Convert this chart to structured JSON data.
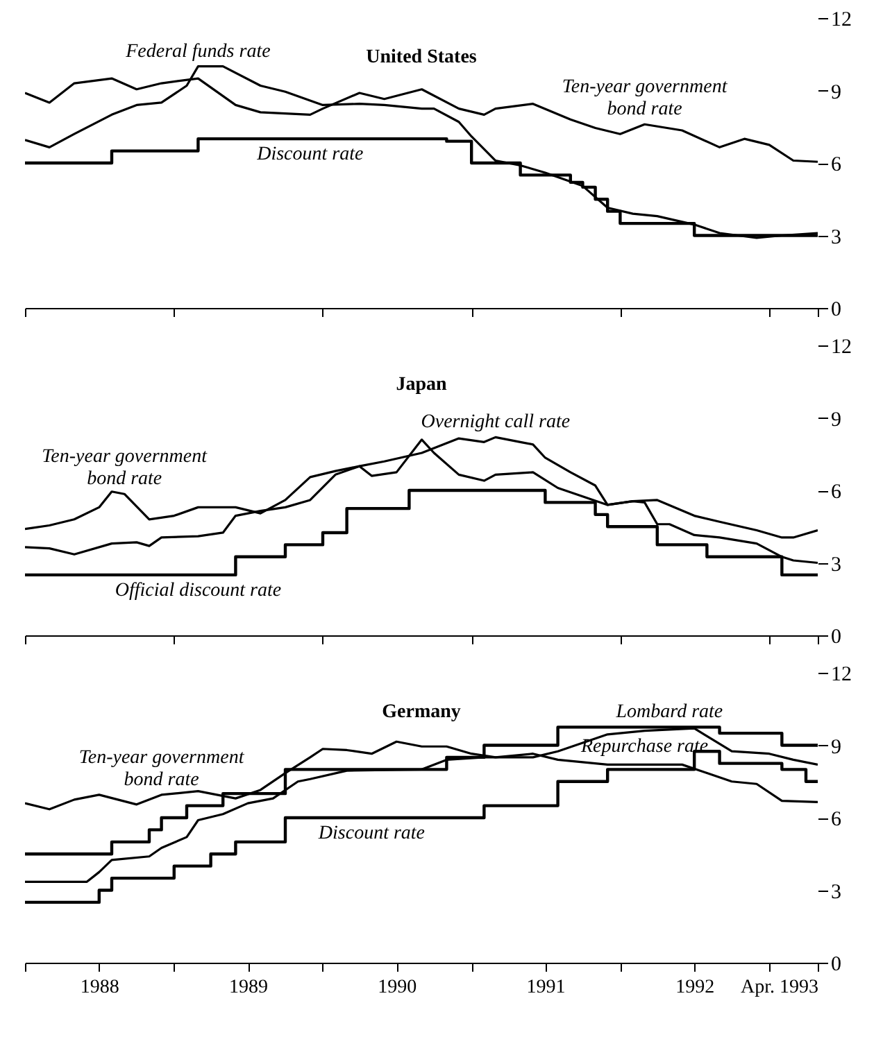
{
  "chart_data": [
    {
      "type": "line",
      "title": "United States",
      "xlim": [
        "1988-01",
        "1993-04-30"
      ],
      "ylim": [
        0,
        12
      ],
      "yticks": [
        0,
        3,
        6,
        9,
        12
      ],
      "tick_labels": "y",
      "xticks": [
        {
          "value": "1988-01",
          "label": null
        },
        {
          "value": "1989-01",
          "label": null
        },
        {
          "value": "1990-01",
          "label": null
        },
        {
          "value": "1991-01",
          "label": null
        },
        {
          "value": "1992-01",
          "label": null
        },
        {
          "value": "1993-01",
          "label": null
        },
        {
          "value": "1993-04-30",
          "label": null
        }
      ],
      "series": [
        {
          "color": "#000000",
          "x": [
            "1988-01",
            "1988-03",
            "1988-05",
            "1988-08",
            "1988-10",
            "1988-12",
            "1989-03",
            "1989-06",
            "1989-08",
            "1989-12",
            "1990-01",
            "1990-04",
            "1990-06",
            "1990-09",
            "1990-12",
            "1991-02",
            "1991-03",
            "1991-06",
            "1991-09",
            "1991-11",
            "1992-01",
            "1992-03",
            "1992-06",
            "1992-09",
            "1992-11",
            "1993-01",
            "1993-03",
            "1993-04-30"
          ],
          "values": [
            8.9,
            8.5,
            9.3,
            9.5,
            9.05,
            9.3,
            9.5,
            8.4,
            8.1,
            8.0,
            8.25,
            8.9,
            8.65,
            9.05,
            8.25,
            8.0,
            8.25,
            8.45,
            7.8,
            7.45,
            7.2,
            7.6,
            7.35,
            6.65,
            7.0,
            6.75,
            6.1,
            6.05
          ]
        },
        {
          "color": "#000000",
          "x": [
            "1988-01",
            "1988-03",
            "1988-05",
            "1988-08",
            "1988-10",
            "1988-12",
            "1989-02",
            "1989-03",
            "1989-05",
            "1989-08",
            "1989-10",
            "1990-01",
            "1990-04",
            "1990-06",
            "1990-09",
            "1990-10",
            "1990-12",
            "1991-01",
            "1991-03",
            "1991-05",
            "1991-07",
            "1991-10",
            "1991-12",
            "1992-02",
            "1992-04",
            "1992-07",
            "1992-09",
            "1992-12",
            "1993-02",
            "1993-04-30"
          ],
          "values": [
            6.95,
            6.65,
            7.2,
            8.0,
            8.4,
            8.5,
            9.2,
            10.0,
            10.0,
            9.2,
            8.95,
            8.4,
            8.45,
            8.4,
            8.25,
            8.25,
            7.7,
            7.1,
            6.1,
            5.9,
            5.6,
            5.05,
            4.15,
            3.9,
            3.8,
            3.45,
            3.1,
            2.9,
            3.0,
            3.1
          ]
        },
        {
          "type": "step",
          "color": "#000000",
          "x": [
            "1988-01",
            "1988-08",
            "1989-03",
            "1990-11",
            "1991-01",
            "1991-05",
            "1991-09",
            "1991-10",
            "1991-11",
            "1991-12",
            "1992-01",
            "1992-07",
            "1993-04-30"
          ],
          "values": [
            6.0,
            6.5,
            7.0,
            6.9,
            6.0,
            5.5,
            5.2,
            5.0,
            4.5,
            4.0,
            3.5,
            3.0,
            3.0
          ]
        }
      ],
      "annotations": [
        {
          "text": "Federal funds rate",
          "x": "1989-03",
          "y": 10.0
        },
        {
          "text": "Ten-year government\nbond rate",
          "x": "1992-03",
          "y": 7.6
        },
        {
          "text": "Discount rate",
          "x": "1989-12",
          "y": 7.0
        }
      ]
    },
    {
      "type": "line",
      "title": "Japan",
      "xlim": [
        "1988-01",
        "1993-04-30"
      ],
      "ylim": [
        0,
        12
      ],
      "yticks": [
        0,
        3,
        6,
        9,
        12
      ],
      "tick_labels": "y",
      "xticks": [
        {
          "value": "1988-01",
          "label": null
        },
        {
          "value": "1989-01",
          "label": null
        },
        {
          "value": "1990-01",
          "label": null
        },
        {
          "value": "1991-01",
          "label": null
        },
        {
          "value": "1992-01",
          "label": null
        },
        {
          "value": "1993-01",
          "label": null
        },
        {
          "value": "1993-04-30",
          "label": null
        }
      ],
      "series": [
        {
          "color": "#000000",
          "x": [
            "1988-01",
            "1988-03",
            "1988-05",
            "1988-07",
            "1988-08",
            "1988-09",
            "1988-11",
            "1989-01",
            "1989-03",
            "1989-06",
            "1989-08",
            "1989-10",
            "1989-12",
            "1990-02",
            "1990-04",
            "1990-05",
            "1990-07",
            "1990-09",
            "1990-10",
            "1990-12",
            "1991-02",
            "1991-03",
            "1991-06",
            "1991-08",
            "1991-10",
            "1991-12",
            "1992-02",
            "1992-04",
            "1992-07",
            "1992-09",
            "1992-12",
            "1993-02",
            "1993-03",
            "1993-04-30"
          ],
          "values": [
            4.4,
            4.55,
            4.8,
            5.3,
            5.95,
            5.85,
            4.8,
            4.95,
            5.3,
            5.3,
            5.05,
            5.6,
            6.55,
            6.8,
            7.0,
            6.6,
            6.75,
            8.1,
            7.55,
            6.65,
            6.4,
            6.65,
            6.75,
            6.1,
            5.75,
            5.4,
            5.55,
            5.6,
            4.95,
            4.7,
            4.35,
            4.05,
            4.05,
            4.35
          ]
        },
        {
          "color": "#000000",
          "x": [
            "1988-01",
            "1988-03",
            "1988-05",
            "1988-08",
            "1988-10",
            "1988-11",
            "1988-12",
            "1989-03",
            "1989-05",
            "1989-06",
            "1989-08",
            "1989-10",
            "1989-12",
            "1990-02",
            "1990-04",
            "1990-06",
            "1990-09",
            "1990-12",
            "1991-02",
            "1991-03",
            "1991-05",
            "1991-06",
            "1991-07",
            "1991-09",
            "1991-11",
            "1991-12",
            "1992-02",
            "1992-03",
            "1992-04",
            "1992-05",
            "1992-07",
            "1992-09",
            "1992-12",
            "1993-02",
            "1993-03",
            "1993-04-30"
          ],
          "values": [
            3.65,
            3.6,
            3.35,
            3.8,
            3.85,
            3.7,
            4.05,
            4.1,
            4.25,
            4.95,
            5.15,
            5.3,
            5.6,
            6.65,
            7.0,
            7.2,
            7.55,
            8.15,
            8.0,
            8.2,
            8.0,
            7.9,
            7.35,
            6.75,
            6.2,
            5.4,
            5.55,
            5.5,
            4.6,
            4.6,
            4.15,
            4.05,
            3.8,
            3.25,
            3.1,
            3.0
          ]
        },
        {
          "type": "step",
          "color": "#000000",
          "x": [
            "1988-01",
            "1989-06",
            "1989-10",
            "1990-01",
            "1990-03",
            "1990-08",
            "1991-07",
            "1991-11",
            "1991-12",
            "1992-04",
            "1992-08",
            "1993-02",
            "1993-04-30"
          ],
          "values": [
            2.5,
            3.25,
            3.75,
            4.25,
            5.25,
            6.0,
            5.5,
            5.0,
            4.5,
            3.75,
            3.25,
            2.5,
            2.5
          ]
        }
      ],
      "annotations": [
        {
          "text": "Ten-year government\nbond rate",
          "x": "1988-09",
          "y": 5.85
        },
        {
          "text": "Overnight call rate",
          "x": "1991-03",
          "y": 8.2
        },
        {
          "text": "Official discount rate",
          "x": "1989-03",
          "y": 2.5
        }
      ]
    },
    {
      "type": "line",
      "title": "Germany",
      "xlim": [
        "1988-01",
        "1993-04-30"
      ],
      "ylim": [
        0,
        12
      ],
      "yticks": [
        0,
        3,
        6,
        9,
        12
      ],
      "xticks": [
        {
          "value": "1988-01",
          "label": null
        },
        {
          "value": "1988-07",
          "label": "1988"
        },
        {
          "value": "1989-01",
          "label": null
        },
        {
          "value": "1989-07",
          "label": "1989"
        },
        {
          "value": "1990-01",
          "label": null
        },
        {
          "value": "1990-07",
          "label": "1990"
        },
        {
          "value": "1991-01",
          "label": null
        },
        {
          "value": "1991-07",
          "label": "1991"
        },
        {
          "value": "1992-01",
          "label": null
        },
        {
          "value": "1992-07",
          "label": "1992"
        },
        {
          "value": "1993-01",
          "label": null
        },
        {
          "value": "1993-04-30",
          "label": "Apr. 1993"
        }
      ],
      "series": [
        {
          "color": "#000000",
          "x": [
            "1988-01",
            "1988-03",
            "1988-05",
            "1988-07",
            "1988-10",
            "1988-12",
            "1989-03",
            "1989-06",
            "1989-08",
            "1989-10",
            "1989-12",
            "1990-01",
            "1990-03",
            "1990-05",
            "1990-07",
            "1990-09",
            "1990-11",
            "1991-01",
            "1991-03",
            "1991-06",
            "1991-08",
            "1991-10",
            "1991-12",
            "1992-03",
            "1992-06",
            "1992-08",
            "1992-10",
            "1992-12",
            "1993-02",
            "1993-04-30"
          ],
          "values": [
            6.6,
            6.35,
            6.75,
            6.95,
            6.55,
            6.95,
            7.1,
            6.8,
            7.15,
            7.85,
            8.5,
            8.85,
            8.8,
            8.65,
            9.15,
            8.95,
            8.95,
            8.65,
            8.5,
            8.65,
            8.4,
            8.3,
            8.2,
            8.2,
            8.2,
            7.85,
            7.5,
            7.4,
            6.7,
            6.65
          ]
        },
        {
          "type": "step",
          "color": "#000000",
          "x": [
            "1988-01",
            "1988-08",
            "1988-11",
            "1988-12",
            "1989-02",
            "1989-05",
            "1989-10",
            "1990-11",
            "1991-02",
            "1991-08",
            "1992-09",
            "1993-02",
            "1993-04-30"
          ],
          "values": [
            4.5,
            5.0,
            5.5,
            6.0,
            6.5,
            7.0,
            8.0,
            8.5,
            9.0,
            9.75,
            9.5,
            9.0,
            9.0
          ]
        },
        {
          "type": "step",
          "color": "#000000",
          "x": [
            "1988-01",
            "1988-07",
            "1988-08",
            "1989-01",
            "1989-04",
            "1989-06",
            "1989-10",
            "1991-02",
            "1991-08",
            "1991-12",
            "1992-07",
            "1992-09",
            "1993-02",
            "1993-04",
            "1993-04-30"
          ],
          "values": [
            2.5,
            3.0,
            3.5,
            4.0,
            4.5,
            5.0,
            6.0,
            6.5,
            7.5,
            8.0,
            8.75,
            8.25,
            8.0,
            7.5,
            7.5
          ]
        },
        {
          "color": "#000000",
          "x": [
            "1988-01",
            "1988-06",
            "1988-07",
            "1988-08",
            "1988-11",
            "1988-12",
            "1989-02",
            "1989-03",
            "1989-05",
            "1989-07",
            "1989-09",
            "1989-11",
            "1989-12",
            "1990-03",
            "1990-09",
            "1990-11",
            "1991-02",
            "1991-06",
            "1991-08",
            "1991-10",
            "1991-12",
            "1992-03",
            "1992-07",
            "1992-10",
            "1993-01",
            "1993-03",
            "1993-04-30"
          ],
          "values": [
            3.35,
            3.35,
            3.75,
            4.25,
            4.4,
            4.75,
            5.2,
            5.9,
            6.15,
            6.6,
            6.8,
            7.5,
            7.6,
            7.95,
            8.0,
            8.4,
            8.5,
            8.5,
            8.75,
            9.1,
            9.45,
            9.6,
            9.7,
            8.75,
            8.65,
            8.4,
            8.2
          ]
        }
      ],
      "annotations": [
        {
          "text": "Ten-year government\nbond rate",
          "x": "1988-12",
          "y": 6.95
        },
        {
          "text": "Lombard rate",
          "x": "1992-05",
          "y": 9.75
        },
        {
          "text": "Discount rate",
          "x": "1990-05",
          "y": 6.0
        },
        {
          "text": "Repurchase rate",
          "x": "1992-03",
          "y": 9.6
        }
      ]
    }
  ]
}
